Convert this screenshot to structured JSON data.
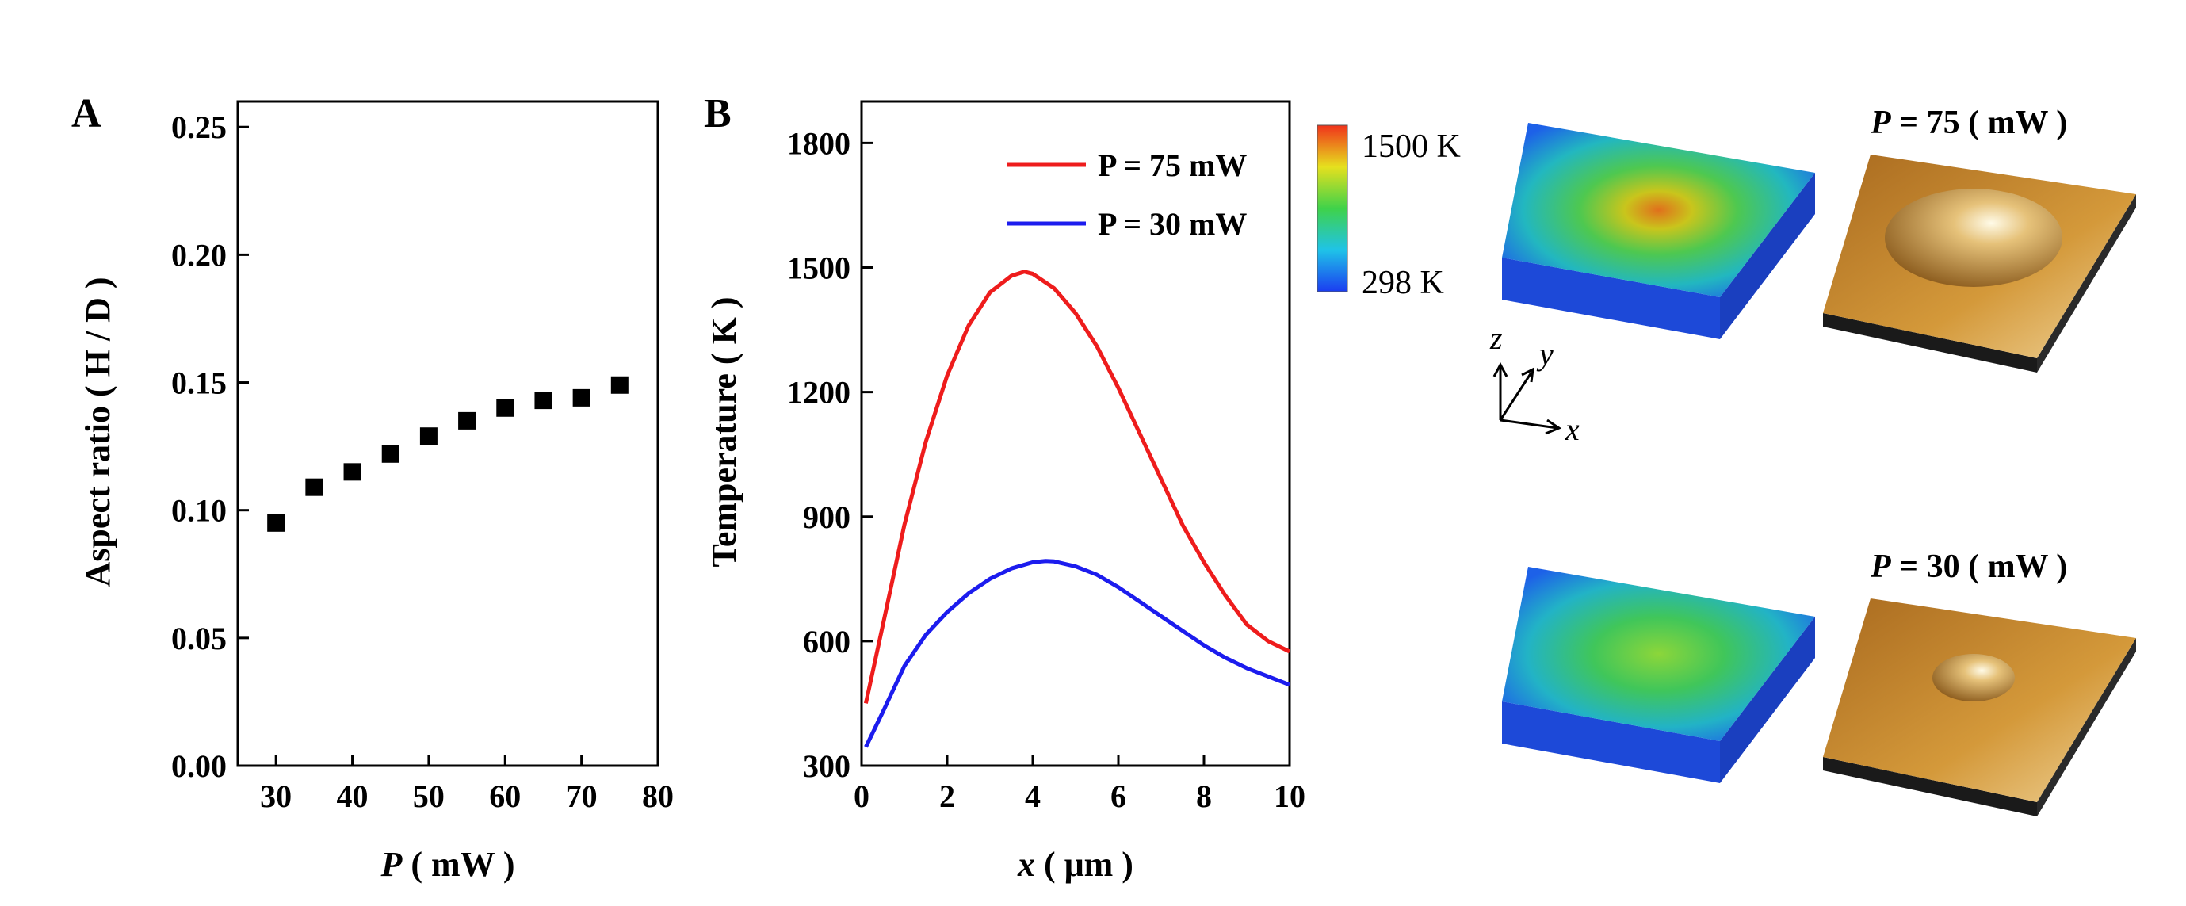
{
  "chart_data": [
    {
      "panel": "A",
      "type": "scatter",
      "xlabel_var": "P",
      "xlabel_unit": " ( mW )",
      "ylabel": "Aspect ratio ( H / D )",
      "xlim": [
        25,
        80
      ],
      "ylim": [
        0,
        0.26
      ],
      "xticks": [
        30,
        40,
        50,
        60,
        70,
        80
      ],
      "yticks": [
        "0.00",
        "0.05",
        "0.10",
        "0.15",
        "0.20",
        "0.25"
      ],
      "series": [
        {
          "marker": "square",
          "color": "#000000",
          "x": [
            30,
            35,
            40,
            45,
            50,
            55,
            60,
            65,
            70,
            75
          ],
          "y": [
            0.095,
            0.109,
            0.115,
            0.122,
            0.129,
            0.135,
            0.14,
            0.143,
            0.144,
            0.149
          ]
        }
      ]
    },
    {
      "panel": "B",
      "type": "line",
      "xlabel_var": "x",
      "xlabel_unit": " ( μm )",
      "ylabel": "Temperature ( K )",
      "xlim": [
        0,
        10
      ],
      "ylim": [
        300,
        1900
      ],
      "xticks": [
        "0",
        "2",
        "4",
        "6",
        "8",
        "10"
      ],
      "yticks": [
        "300",
        "600",
        "900",
        "1200",
        "1500",
        "1800"
      ],
      "legend_position": "top-right",
      "series": [
        {
          "name": "P = 75 mW",
          "color": "#ee1c1c",
          "x": [
            0.1,
            0.5,
            1.0,
            1.5,
            2.0,
            2.5,
            3.0,
            3.5,
            3.8,
            4.0,
            4.5,
            5.0,
            5.5,
            6.0,
            6.5,
            7.0,
            7.5,
            8.0,
            8.5,
            9.0,
            9.5,
            10.0
          ],
          "y": [
            450,
            640,
            880,
            1080,
            1240,
            1360,
            1440,
            1480,
            1490,
            1485,
            1450,
            1390,
            1310,
            1210,
            1100,
            990,
            880,
            790,
            710,
            640,
            600,
            575
          ]
        },
        {
          "name": "P = 30 mW",
          "color": "#1c1cee",
          "x": [
            0.1,
            0.5,
            1.0,
            1.5,
            2.0,
            2.5,
            3.0,
            3.5,
            4.0,
            4.3,
            4.5,
            5.0,
            5.5,
            6.0,
            6.5,
            7.0,
            7.5,
            8.0,
            8.5,
            9.0,
            9.5,
            10.0
          ],
          "y": [
            345,
            430,
            540,
            615,
            670,
            715,
            750,
            775,
            790,
            793,
            792,
            780,
            760,
            730,
            695,
            660,
            625,
            590,
            560,
            535,
            515,
            495
          ]
        }
      ]
    }
  ],
  "colorbar": {
    "max_label": "1500 K",
    "min_label": "298 K"
  },
  "renders": {
    "top_title_var": "P",
    "top_title_rest": " = 75 ( mW )",
    "bottom_title_var": "P",
    "bottom_title_rest": " = 30 ( mW )"
  },
  "axes_triad": {
    "z": "z",
    "y": "y",
    "x": "x"
  },
  "colors": {
    "red": "#ee1c1c",
    "blue": "#1c1cee",
    "gold": "#c9892b"
  }
}
